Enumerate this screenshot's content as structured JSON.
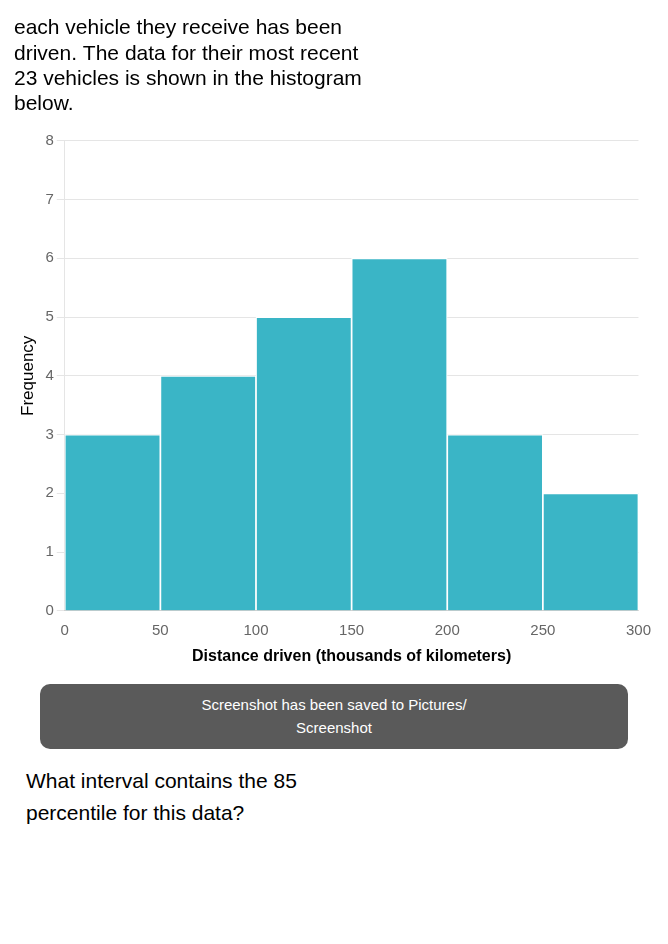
{
  "chart_data": {
    "type": "histogram",
    "title": [
      "each vehicle they receive has been",
      "driven. The data for their most recent",
      "23 vehicles is shown in the histogram",
      "below."
    ],
    "bins": [
      0,
      50,
      100,
      150,
      200,
      250,
      300
    ],
    "values": [
      3,
      4,
      5,
      6,
      3,
      2
    ],
    "color": "#3ab5c6",
    "xlabel": "Distance driven (thousands of kilometers)",
    "ylabel": "Frequency",
    "xlim": [
      0,
      300
    ],
    "xticks": [
      0,
      50,
      100,
      150,
      200,
      250,
      300
    ],
    "ylim": [
      0,
      8
    ],
    "yticks": [
      0,
      1,
      2,
      3,
      4,
      5,
      6,
      7,
      8
    ],
    "grid": "y",
    "annotations": [
      "Screenshot has been saved to  Pictures/",
      "Screenshot",
      "What interval contains the 85",
      "percentile for this data?"
    ]
  }
}
